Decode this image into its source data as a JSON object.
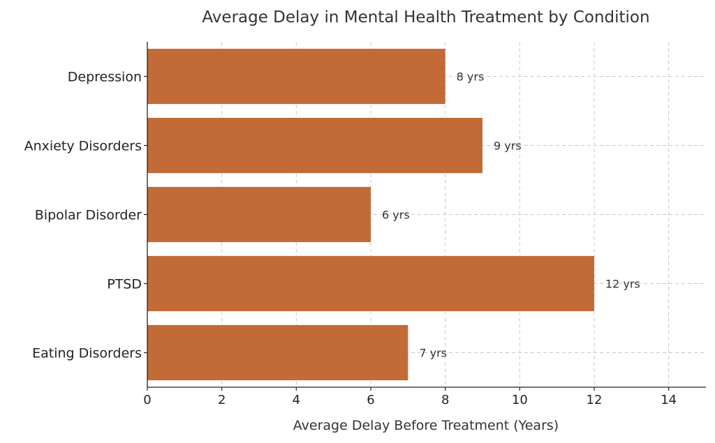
{
  "chart_data": {
    "type": "bar",
    "orientation": "horizontal",
    "title": "Average Delay in Mental Health Treatment by Condition",
    "xlabel": "Average Delay Before Treatment (Years)",
    "ylabel": "",
    "categories": [
      "Depression",
      "Anxiety Disorders",
      "Bipolar Disorder",
      "PTSD",
      "Eating Disorders"
    ],
    "values": [
      8,
      9,
      6,
      12,
      7
    ],
    "data_labels": [
      "8 yrs",
      "9 yrs",
      "6 yrs",
      "12 yrs",
      "7 yrs"
    ],
    "xlim": [
      0,
      15
    ],
    "xticks": [
      0,
      2,
      4,
      6,
      8,
      10,
      12,
      14
    ],
    "xtick_labels": [
      "0",
      "2",
      "4",
      "6",
      "8",
      "10",
      "12",
      "14"
    ],
    "grid": true,
    "bar_color": "#c26b37"
  }
}
